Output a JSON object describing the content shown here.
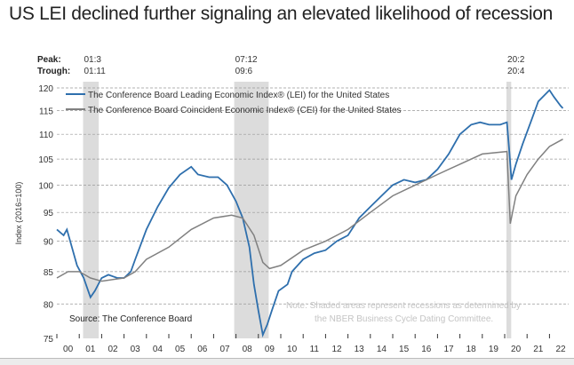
{
  "title": "US LEI declined further signaling an elevated likelihood of recession",
  "chart_data": {
    "type": "line",
    "title": "",
    "ylabel": "Index (2016=100)",
    "xlabel": "",
    "y_scale": "log",
    "ylim": [
      75,
      120
    ],
    "yticks": [
      75,
      80,
      85,
      90,
      95,
      100,
      105,
      110,
      115,
      120
    ],
    "xlim": [
      2000,
      2023
    ],
    "xtick_labels": [
      "00",
      "01",
      "02",
      "03",
      "04",
      "05",
      "06",
      "07",
      "08",
      "09",
      "10",
      "11",
      "12",
      "13",
      "14",
      "15",
      "16",
      "17",
      "18",
      "19",
      "20",
      "21",
      "22"
    ],
    "grid": "horizontal dashed",
    "legend_placement": "top-left",
    "peak_label": "Peak:",
    "trough_label": "Trough:",
    "recessions": [
      {
        "peak": "01:3",
        "trough": "01:11",
        "start": 2001.17,
        "end": 2001.87
      },
      {
        "peak": "07:12",
        "trough": "09:6",
        "start": 2007.92,
        "end": 2009.46
      },
      {
        "peak": "20:2",
        "trough": "20:4",
        "start": 2020.08,
        "end": 2020.29
      }
    ],
    "source": "Source: The Conference Board",
    "note": [
      "Note: Shaded areas represent recessions as determined by",
      "the NBER Business Cycle Dating Committee."
    ],
    "series": [
      {
        "name": "The Conference Board Leading Economic Index® (LEI) for the United States",
        "color": "#2e6fad",
        "x": [
          2000.0,
          2000.3,
          2000.45,
          2000.9,
          2001.2,
          2001.5,
          2001.7,
          2002.0,
          2002.3,
          2002.7,
          2003.0,
          2003.3,
          2003.5,
          2004.0,
          2004.5,
          2005.0,
          2005.5,
          2006.0,
          2006.3,
          2006.8,
          2007.2,
          2007.6,
          2008.0,
          2008.3,
          2008.6,
          2008.8,
          2009.0,
          2009.2,
          2009.4,
          2009.6,
          2009.9,
          2010.3,
          2010.5,
          2011.0,
          2011.5,
          2012.0,
          2012.5,
          2013.0,
          2013.5,
          2014.0,
          2014.5,
          2015.0,
          2015.5,
          2016.0,
          2016.5,
          2017.0,
          2017.5,
          2018.0,
          2018.5,
          2018.9,
          2019.3,
          2019.8,
          2020.1,
          2020.2,
          2020.3,
          2020.5,
          2020.8,
          2021.2,
          2021.5,
          2021.9,
          2022.0,
          2022.2,
          2022.5,
          2022.6
        ],
        "values": [
          92,
          91,
          92,
          86,
          84,
          81,
          82,
          84,
          84.5,
          84,
          84,
          85,
          87,
          92,
          96,
          99.5,
          102,
          103.5,
          102,
          101.5,
          101.5,
          100,
          97,
          94,
          89,
          83,
          79,
          75.5,
          77,
          79,
          82,
          83,
          85,
          87,
          88,
          88.5,
          90,
          91,
          94,
          96,
          98,
          100,
          101,
          100.5,
          101,
          103,
          106,
          110,
          112,
          112.5,
          112,
          112,
          112.5,
          107,
          101,
          104,
          108,
          113,
          117,
          119,
          119.5,
          118,
          116,
          115.5
        ]
      },
      {
        "name": "The Conference Board Coincident Economic Index® (CEI) for the United States",
        "color": "#808080",
        "x": [
          2000.0,
          2000.5,
          2001.0,
          2001.5,
          2002.0,
          2003.0,
          2003.5,
          2004.0,
          2005.0,
          2006.0,
          2007.0,
          2007.8,
          2008.3,
          2008.8,
          2009.2,
          2009.5,
          2010.0,
          2011.0,
          2012.0,
          2013.0,
          2014.0,
          2015.0,
          2016.0,
          2017.0,
          2018.0,
          2019.0,
          2020.1,
          2020.25,
          2020.5,
          2021.0,
          2021.5,
          2022.0,
          2022.6
        ],
        "values": [
          84,
          85,
          85,
          84,
          83.5,
          84,
          85,
          87,
          89,
          92,
          94,
          94.5,
          94,
          91,
          86.5,
          85.5,
          86,
          88.5,
          90,
          92,
          95,
          98,
          100,
          102,
          104,
          106,
          106.5,
          93,
          98,
          102,
          105,
          107.5,
          109
        ]
      }
    ]
  }
}
